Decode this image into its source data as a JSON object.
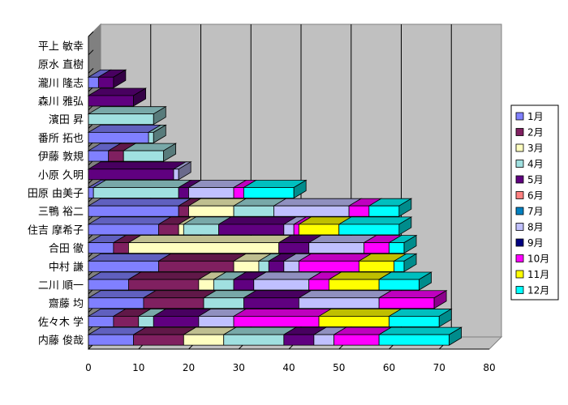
{
  "chart_data": {
    "type": "bar",
    "orientation": "horizontal",
    "stacked": true,
    "style": "3d",
    "title": "",
    "xlabel": "",
    "ylabel": "",
    "xlim": [
      0,
      80
    ],
    "x_ticks": [
      0,
      10,
      20,
      30,
      40,
      50,
      60,
      70,
      80
    ],
    "grid": true,
    "legend_position": "right",
    "categories": [
      "内藤 俊哉",
      "佐々木 学",
      "齋藤 均",
      "二川 順一",
      "中村 謙",
      "合田 徹",
      "住吉 摩希子",
      "三鴨 裕二",
      "田原 由美子",
      "小原 久明",
      "伊藤 敦規",
      "番所 拓也",
      "濱田 昇",
      "森川 雅弘",
      "瀧川 隆志",
      "原水 直樹",
      "平上 敏幸"
    ],
    "series": [
      {
        "name": "1月",
        "color": "#8080ff",
        "values": [
          9,
          5,
          11,
          8,
          14,
          5,
          14,
          18,
          1,
          0,
          4,
          12,
          0,
          0,
          2,
          0,
          0
        ]
      },
      {
        "name": "2月",
        "color": "#802060",
        "values": [
          10,
          5,
          12,
          14,
          15,
          3,
          4,
          2,
          0,
          0,
          3,
          0,
          0,
          0,
          0,
          0,
          0
        ]
      },
      {
        "name": "3月",
        "color": "#ffffc0",
        "values": [
          8,
          0,
          0,
          3,
          5,
          30,
          1,
          9,
          0,
          0,
          0,
          0,
          0,
          0,
          0,
          0,
          0
        ]
      },
      {
        "name": "4月",
        "color": "#a0e0e0",
        "values": [
          12,
          3,
          8,
          4,
          2,
          0,
          7,
          8,
          17,
          0,
          8,
          1,
          13,
          0,
          0,
          0,
          0
        ]
      },
      {
        "name": "5月",
        "color": "#600080",
        "values": [
          6,
          9,
          11,
          4,
          3,
          6,
          13,
          0,
          2,
          17,
          0,
          0,
          0,
          9,
          3,
          0,
          0
        ]
      },
      {
        "name": "6月",
        "color": "#ff8080",
        "values": [
          0,
          0,
          0,
          0,
          0,
          0,
          0,
          0,
          0,
          0,
          0,
          0,
          0,
          0,
          0,
          0,
          0
        ]
      },
      {
        "name": "7月",
        "color": "#0080c0",
        "values": [
          0,
          0,
          0,
          0,
          0,
          0,
          0,
          0,
          0,
          0,
          0,
          0,
          0,
          0,
          0,
          0,
          0
        ]
      },
      {
        "name": "8月",
        "color": "#c0c0ff",
        "values": [
          4,
          7,
          16,
          11,
          3,
          11,
          2,
          15,
          9,
          1,
          0,
          0,
          0,
          0,
          0,
          0,
          0
        ]
      },
      {
        "name": "9月",
        "color": "#000080",
        "values": [
          0,
          0,
          0,
          0,
          0,
          0,
          0,
          0,
          0,
          0,
          0,
          0,
          0,
          0,
          0,
          0,
          0
        ]
      },
      {
        "name": "10月",
        "color": "#ff00ff",
        "values": [
          9,
          17,
          11,
          4,
          12,
          5,
          1,
          4,
          2,
          0,
          0,
          0,
          0,
          0,
          0,
          0,
          0
        ]
      },
      {
        "name": "11月",
        "color": "#ffff00",
        "values": [
          0,
          14,
          0,
          10,
          7,
          0,
          8,
          0,
          0,
          0,
          0,
          0,
          0,
          0,
          0,
          0,
          0
        ]
      },
      {
        "name": "12月",
        "color": "#00ffff",
        "values": [
          14,
          10,
          0,
          8,
          2,
          3,
          12,
          6,
          10,
          0,
          0,
          0,
          0,
          0,
          0,
          0,
          0
        ]
      }
    ]
  }
}
